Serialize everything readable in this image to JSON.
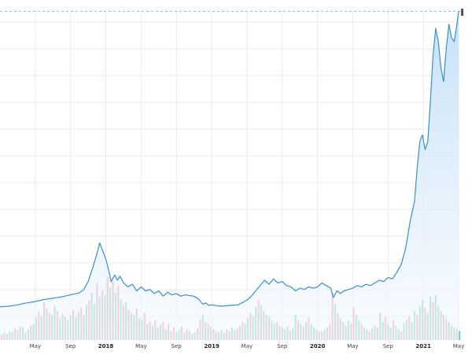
{
  "chart_data": {
    "type": "line",
    "title": "",
    "xlabel": "",
    "ylabel": "",
    "grid": true,
    "colors": {
      "line": "#3a8fd6",
      "area_top": "#bcdcf7",
      "area_bottom": "#f4f9fe",
      "volume_up": "#7fcfbd",
      "volume_down": "#f29aa2",
      "grid": "#ebebeb",
      "dashed_ref": "#8fc3e8"
    },
    "x_ticks": [
      {
        "label": "May",
        "x": 4
      },
      {
        "label": "Sep",
        "x": 8
      },
      {
        "label": "2018",
        "x": 12,
        "bold": true
      },
      {
        "label": "May",
        "x": 16
      },
      {
        "label": "Sep",
        "x": 20
      },
      {
        "label": "2019",
        "x": 24,
        "bold": true
      },
      {
        "label": "May",
        "x": 28
      },
      {
        "label": "Sep",
        "x": 32
      },
      {
        "label": "2020",
        "x": 36,
        "bold": true
      },
      {
        "label": "May",
        "x": 40
      },
      {
        "label": "Sep",
        "x": 44
      },
      {
        "label": "2021",
        "x": 48,
        "bold": true
      },
      {
        "label": "May",
        "x": 52
      }
    ],
    "x_range": [
      0,
      53
    ],
    "price": [
      [
        0,
        6
      ],
      [
        1,
        6.5
      ],
      [
        2,
        7.5
      ],
      [
        3,
        9
      ],
      [
        4,
        10
      ],
      [
        5,
        11.5
      ],
      [
        6,
        12.5
      ],
      [
        7,
        13.5
      ],
      [
        8,
        15
      ],
      [
        9,
        16.5
      ],
      [
        9.5,
        19
      ],
      [
        10,
        25
      ],
      [
        10.5,
        35
      ],
      [
        11,
        46
      ],
      [
        11.3,
        54
      ],
      [
        11.7,
        47
      ],
      [
        12,
        42
      ],
      [
        12.3,
        34
      ],
      [
        12.6,
        25
      ],
      [
        13,
        30
      ],
      [
        13.3,
        26
      ],
      [
        13.6,
        29
      ],
      [
        14,
        24
      ],
      [
        14.5,
        21
      ],
      [
        15,
        23
      ],
      [
        15.5,
        18
      ],
      [
        16,
        21
      ],
      [
        16.5,
        18
      ],
      [
        17,
        19
      ],
      [
        17.5,
        16
      ],
      [
        18,
        18
      ],
      [
        18.5,
        14
      ],
      [
        19,
        17
      ],
      [
        19.5,
        15
      ],
      [
        20,
        16
      ],
      [
        20.5,
        14
      ],
      [
        21,
        15
      ],
      [
        22,
        14
      ],
      [
        22.5,
        12
      ],
      [
        23,
        8
      ],
      [
        23.3,
        9
      ],
      [
        23.7,
        7
      ],
      [
        24,
        7.5
      ],
      [
        25,
        6.5
      ],
      [
        26,
        7
      ],
      [
        27,
        7.5
      ],
      [
        28,
        11
      ],
      [
        28.5,
        14
      ],
      [
        29,
        18
      ],
      [
        29.5,
        22
      ],
      [
        30,
        26
      ],
      [
        30.5,
        23
      ],
      [
        31,
        27
      ],
      [
        31.5,
        24
      ],
      [
        32,
        25
      ],
      [
        32.5,
        22
      ],
      [
        33,
        21
      ],
      [
        33.5,
        18
      ],
      [
        34,
        20
      ],
      [
        34.5,
        19
      ],
      [
        35,
        21
      ],
      [
        35.5,
        20
      ],
      [
        36,
        21
      ],
      [
        36.5,
        24
      ],
      [
        37,
        22
      ],
      [
        37.5,
        20
      ],
      [
        37.8,
        13
      ],
      [
        38.2,
        18
      ],
      [
        38.6,
        16
      ],
      [
        39,
        18
      ],
      [
        39.5,
        19
      ],
      [
        40,
        20
      ],
      [
        40.5,
        22
      ],
      [
        41,
        21
      ],
      [
        41.5,
        23
      ],
      [
        42,
        22
      ],
      [
        42.5,
        24
      ],
      [
        43,
        26
      ],
      [
        43.5,
        25
      ],
      [
        44,
        28
      ],
      [
        44.5,
        27
      ],
      [
        45,
        32
      ],
      [
        45.5,
        38
      ],
      [
        46,
        50
      ],
      [
        46.5,
        70
      ],
      [
        47,
        85
      ],
      [
        47.3,
        110
      ],
      [
        47.6,
        130
      ],
      [
        47.9,
        135
      ],
      [
        48.2,
        124
      ],
      [
        48.5,
        130
      ],
      [
        48.8,
        160
      ],
      [
        49.1,
        195
      ],
      [
        49.4,
        215
      ],
      [
        49.7,
        205
      ],
      [
        50,
        185
      ],
      [
        50.3,
        175
      ],
      [
        50.6,
        200
      ],
      [
        50.9,
        218
      ],
      [
        51.2,
        208
      ],
      [
        51.5,
        205
      ],
      [
        51.8,
        218
      ],
      [
        52,
        228
      ]
    ],
    "volume": [
      [
        0.2,
        6,
        "down"
      ],
      [
        0.5,
        8,
        "up"
      ],
      [
        0.8,
        7,
        "down"
      ],
      [
        1.1,
        10,
        "up"
      ],
      [
        1.4,
        9,
        "up"
      ],
      [
        1.7,
        13,
        "down"
      ],
      [
        2.0,
        11,
        "up"
      ],
      [
        2.3,
        15,
        "down"
      ],
      [
        2.6,
        14,
        "up"
      ],
      [
        2.9,
        9,
        "up"
      ],
      [
        3.2,
        12,
        "up"
      ],
      [
        3.5,
        16,
        "down"
      ],
      [
        3.8,
        18,
        "up"
      ],
      [
        4.1,
        25,
        "up"
      ],
      [
        4.4,
        31,
        "down"
      ],
      [
        4.7,
        26,
        "up"
      ],
      [
        5.0,
        42,
        "down"
      ],
      [
        5.3,
        35,
        "up"
      ],
      [
        5.6,
        30,
        "down"
      ],
      [
        5.9,
        28,
        "up"
      ],
      [
        6.2,
        38,
        "up"
      ],
      [
        6.5,
        32,
        "down"
      ],
      [
        6.8,
        24,
        "up"
      ],
      [
        7.1,
        29,
        "up"
      ],
      [
        7.4,
        26,
        "down"
      ],
      [
        7.7,
        22,
        "up"
      ],
      [
        8.0,
        27,
        "up"
      ],
      [
        8.3,
        33,
        "down"
      ],
      [
        8.6,
        25,
        "up"
      ],
      [
        8.9,
        31,
        "up"
      ],
      [
        9.2,
        36,
        "down"
      ],
      [
        9.5,
        28,
        "up"
      ],
      [
        9.8,
        39,
        "up"
      ],
      [
        10.1,
        44,
        "down"
      ],
      [
        10.4,
        52,
        "up"
      ],
      [
        10.7,
        40,
        "up"
      ],
      [
        11.0,
        62,
        "down"
      ],
      [
        11.3,
        48,
        "up"
      ],
      [
        11.6,
        55,
        "down"
      ],
      [
        11.9,
        50,
        "up"
      ],
      [
        12.2,
        70,
        "down"
      ],
      [
        12.5,
        58,
        "up"
      ],
      [
        12.8,
        65,
        "down"
      ],
      [
        13.1,
        52,
        "up"
      ],
      [
        13.4,
        60,
        "down"
      ],
      [
        13.7,
        45,
        "up"
      ],
      [
        14.0,
        38,
        "down"
      ],
      [
        14.3,
        42,
        "up"
      ],
      [
        14.6,
        33,
        "down"
      ],
      [
        14.9,
        30,
        "up"
      ],
      [
        15.2,
        28,
        "up"
      ],
      [
        15.5,
        35,
        "down"
      ],
      [
        15.8,
        24,
        "up"
      ],
      [
        16.1,
        22,
        "up"
      ],
      [
        16.4,
        30,
        "down"
      ],
      [
        16.7,
        18,
        "up"
      ],
      [
        17.0,
        20,
        "down"
      ],
      [
        17.3,
        16,
        "up"
      ],
      [
        17.6,
        22,
        "down"
      ],
      [
        17.9,
        14,
        "up"
      ],
      [
        18.2,
        17,
        "up"
      ],
      [
        18.5,
        20,
        "down"
      ],
      [
        18.8,
        12,
        "up"
      ],
      [
        19.1,
        18,
        "down"
      ],
      [
        19.4,
        10,
        "up"
      ],
      [
        19.7,
        14,
        "down"
      ],
      [
        20.0,
        9,
        "up"
      ],
      [
        20.3,
        11,
        "up"
      ],
      [
        20.6,
        15,
        "down"
      ],
      [
        20.9,
        8,
        "up"
      ],
      [
        21.2,
        12,
        "down"
      ],
      [
        21.5,
        10,
        "up"
      ],
      [
        21.8,
        7,
        "up"
      ],
      [
        22.1,
        9,
        "down"
      ],
      [
        22.4,
        13,
        "up"
      ],
      [
        22.7,
        23,
        "down"
      ],
      [
        23.0,
        28,
        "up"
      ],
      [
        23.3,
        20,
        "down"
      ],
      [
        23.6,
        18,
        "up"
      ],
      [
        23.9,
        15,
        "down"
      ],
      [
        24.2,
        12,
        "up"
      ],
      [
        24.5,
        10,
        "down"
      ],
      [
        24.8,
        9,
        "up"
      ],
      [
        25.1,
        11,
        "up"
      ],
      [
        25.4,
        8,
        "down"
      ],
      [
        25.7,
        12,
        "up"
      ],
      [
        26.0,
        10,
        "down"
      ],
      [
        26.3,
        14,
        "up"
      ],
      [
        26.6,
        11,
        "up"
      ],
      [
        26.9,
        13,
        "down"
      ],
      [
        27.2,
        16,
        "up"
      ],
      [
        27.5,
        20,
        "down"
      ],
      [
        27.8,
        18,
        "up"
      ],
      [
        28.1,
        24,
        "up"
      ],
      [
        28.4,
        30,
        "down"
      ],
      [
        28.7,
        26,
        "up"
      ],
      [
        29.0,
        36,
        "up"
      ],
      [
        29.3,
        44,
        "down"
      ],
      [
        29.6,
        38,
        "up"
      ],
      [
        29.9,
        32,
        "down"
      ],
      [
        30.2,
        28,
        "up"
      ],
      [
        30.5,
        26,
        "down"
      ],
      [
        30.8,
        22,
        "up"
      ],
      [
        31.1,
        18,
        "up"
      ],
      [
        31.4,
        20,
        "down"
      ],
      [
        31.7,
        16,
        "up"
      ],
      [
        32.0,
        14,
        "down"
      ],
      [
        32.3,
        12,
        "up"
      ],
      [
        32.6,
        15,
        "up"
      ],
      [
        32.9,
        10,
        "down"
      ],
      [
        33.2,
        13,
        "up"
      ],
      [
        33.5,
        28,
        "up"
      ],
      [
        33.8,
        22,
        "down"
      ],
      [
        34.1,
        18,
        "up"
      ],
      [
        34.4,
        15,
        "down"
      ],
      [
        34.7,
        20,
        "up"
      ],
      [
        35.0,
        25,
        "down"
      ],
      [
        35.3,
        18,
        "up"
      ],
      [
        35.6,
        14,
        "up"
      ],
      [
        35.9,
        12,
        "down"
      ],
      [
        36.2,
        10,
        "up"
      ],
      [
        36.5,
        9,
        "down"
      ],
      [
        36.8,
        11,
        "up"
      ],
      [
        37.1,
        14,
        "up"
      ],
      [
        37.4,
        18,
        "down"
      ],
      [
        37.7,
        52,
        "down"
      ],
      [
        38.0,
        40,
        "up"
      ],
      [
        38.3,
        30,
        "down"
      ],
      [
        38.6,
        24,
        "up"
      ],
      [
        38.9,
        20,
        "down"
      ],
      [
        39.2,
        16,
        "up"
      ],
      [
        39.5,
        22,
        "up"
      ],
      [
        39.8,
        18,
        "down"
      ],
      [
        40.1,
        36,
        "down"
      ],
      [
        40.4,
        28,
        "up"
      ],
      [
        40.7,
        22,
        "up"
      ],
      [
        41.0,
        18,
        "down"
      ],
      [
        41.3,
        14,
        "up"
      ],
      [
        41.6,
        12,
        "up"
      ],
      [
        41.9,
        10,
        "down"
      ],
      [
        42.2,
        13,
        "up"
      ],
      [
        42.5,
        16,
        "up"
      ],
      [
        42.8,
        14,
        "down"
      ],
      [
        43.1,
        30,
        "up"
      ],
      [
        43.4,
        20,
        "up"
      ],
      [
        43.7,
        26,
        "down"
      ],
      [
        44.0,
        18,
        "up"
      ],
      [
        44.3,
        14,
        "up"
      ],
      [
        44.6,
        22,
        "down"
      ],
      [
        44.9,
        16,
        "up"
      ],
      [
        45.2,
        12,
        "up"
      ],
      [
        45.5,
        10,
        "down"
      ],
      [
        45.8,
        18,
        "up"
      ],
      [
        46.1,
        22,
        "up"
      ],
      [
        46.4,
        26,
        "down"
      ],
      [
        46.7,
        20,
        "up"
      ],
      [
        47.0,
        32,
        "up"
      ],
      [
        47.3,
        28,
        "down"
      ],
      [
        47.6,
        38,
        "up"
      ],
      [
        47.9,
        44,
        "up"
      ],
      [
        48.2,
        36,
        "down"
      ],
      [
        48.5,
        30,
        "up"
      ],
      [
        48.8,
        48,
        "up"
      ],
      [
        49.1,
        42,
        "down"
      ],
      [
        49.4,
        50,
        "up"
      ],
      [
        49.7,
        38,
        "up"
      ],
      [
        50.0,
        32,
        "down"
      ],
      [
        50.3,
        28,
        "up"
      ],
      [
        50.6,
        24,
        "down"
      ],
      [
        50.9,
        20,
        "up"
      ],
      [
        51.2,
        16,
        "up"
      ],
      [
        51.5,
        14,
        "down"
      ],
      [
        51.8,
        12,
        "up"
      ],
      [
        52.1,
        10,
        "up"
      ]
    ]
  }
}
